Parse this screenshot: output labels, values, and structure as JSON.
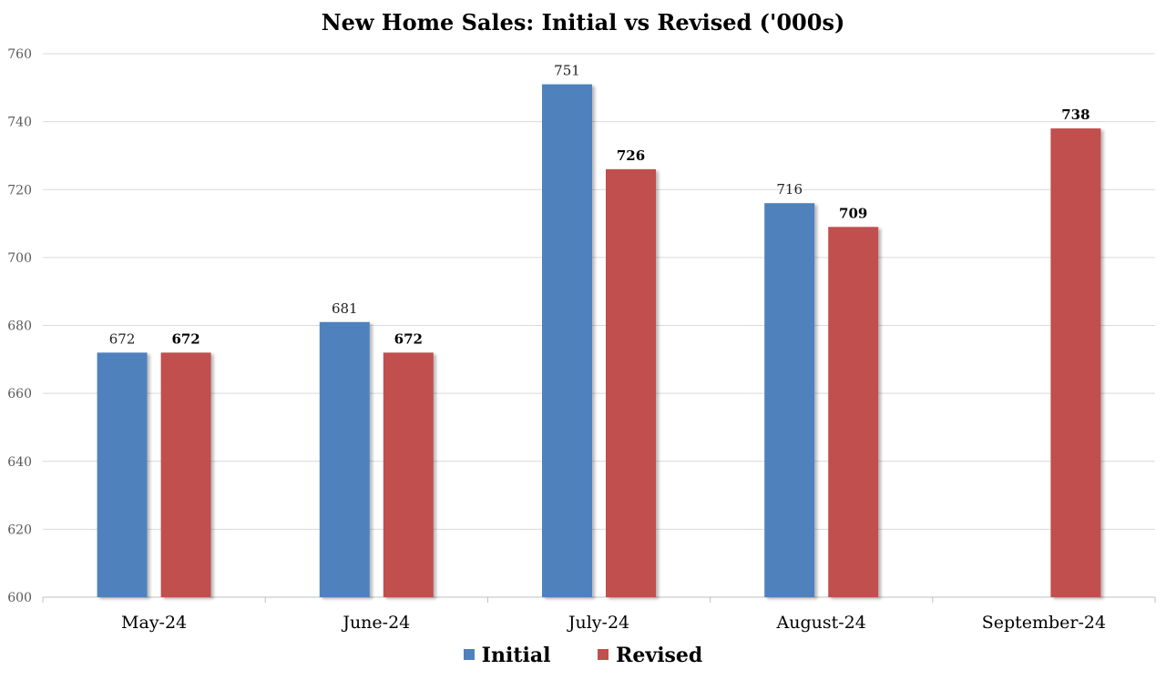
{
  "title": "New Home Sales: Initial vs Revised ('000s)",
  "chart_data": {
    "type": "bar",
    "title": "New Home Sales: Initial vs Revised ('000s)",
    "categories": [
      "May-24",
      "June-24",
      "July-24",
      "August-24",
      "September-24"
    ],
    "series": [
      {
        "name": "Initial",
        "color": "#4F81BD",
        "values": [
          672,
          681,
          751,
          716,
          null
        ]
      },
      {
        "name": "Revised",
        "color": "#C0504D",
        "values": [
          672,
          672,
          726,
          709,
          738
        ]
      }
    ],
    "ylim": [
      600,
      760
    ],
    "yticks": [
      600,
      620,
      640,
      660,
      680,
      700,
      720,
      740,
      760
    ],
    "grid": true,
    "legend_position": "bottom",
    "xlabel": "",
    "ylabel": ""
  },
  "legend": {
    "items": [
      {
        "label": "Initial",
        "color": "#4F81BD"
      },
      {
        "label": "Revised",
        "color": "#C0504D"
      }
    ]
  }
}
